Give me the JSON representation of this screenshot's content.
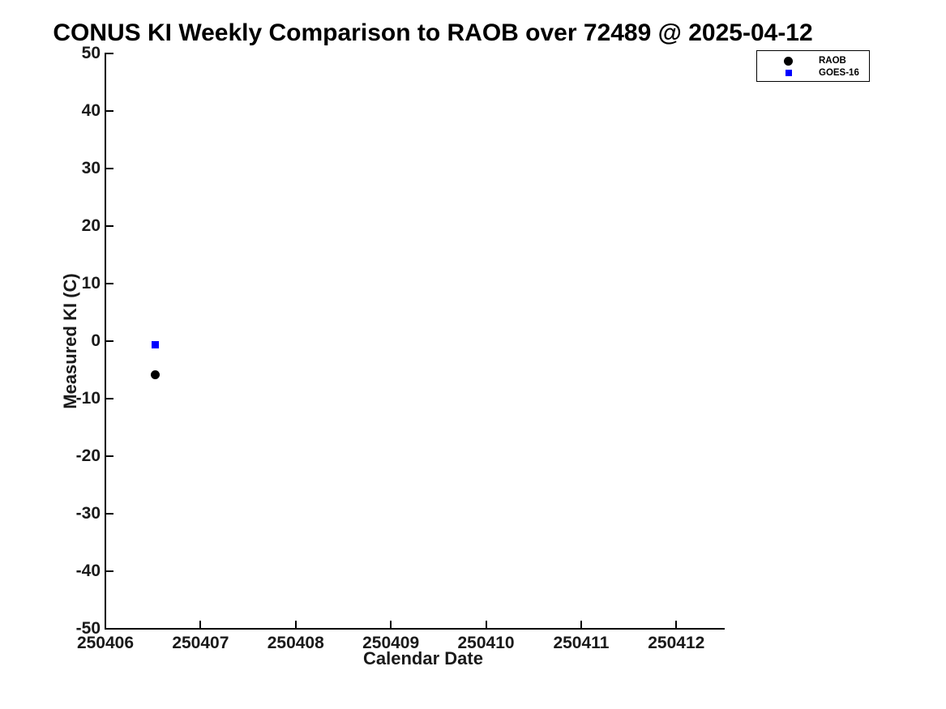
{
  "chart_data": {
    "type": "scatter",
    "title": "CONUS KI Weekly Comparison to RAOB over 72489 @ 2025-04-12",
    "xlabel": "Calendar Date",
    "ylabel": "Measured KI (C)",
    "xlim": [
      250406,
      250412.5
    ],
    "ylim": [
      -50,
      50
    ],
    "x_ticks": [
      250406,
      250407,
      250408,
      250409,
      250410,
      250411,
      250412
    ],
    "y_ticks": [
      50,
      40,
      30,
      20,
      10,
      0,
      -10,
      -20,
      -30,
      -40,
      -50
    ],
    "grid": false,
    "legend_position": "top-right",
    "series": [
      {
        "name": "RAOB",
        "marker": "circle",
        "color": "#000000",
        "points": [
          {
            "x": 250406.52,
            "y": -5.9
          }
        ]
      },
      {
        "name": "GOES-16",
        "marker": "square",
        "color": "#0000ff",
        "points": [
          {
            "x": 250406.52,
            "y": -0.7
          }
        ]
      }
    ],
    "colors": {
      "background": "#ffffff",
      "axis": "#000000",
      "tick_label": "#1a1a1a"
    }
  }
}
